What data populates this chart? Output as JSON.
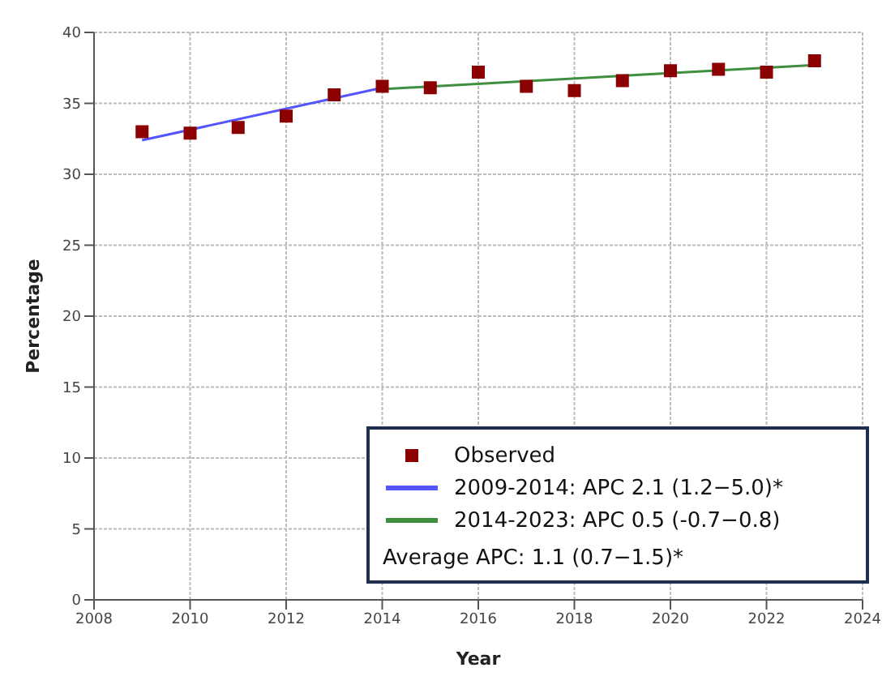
{
  "chart_data": {
    "type": "scatter",
    "xlabel": "Year",
    "ylabel": "Percentage",
    "xlim": [
      2008,
      2024
    ],
    "xticks": [
      2008,
      2010,
      2012,
      2014,
      2016,
      2018,
      2020,
      2022,
      2024
    ],
    "ylim": [
      0,
      40
    ],
    "yticks": [
      0,
      5,
      10,
      15,
      20,
      25,
      30,
      35,
      40
    ],
    "grid": true,
    "legend": "bottom right",
    "series": [
      {
        "name": "Observed",
        "marker": "square",
        "color": "#8b0000",
        "x": [
          2009,
          2010,
          2011,
          2012,
          2013,
          2014,
          2015,
          2016,
          2017,
          2018,
          2019,
          2020,
          2021,
          2022,
          2023
        ],
        "values": [
          33.0,
          32.9,
          33.3,
          34.1,
          35.6,
          36.2,
          36.1,
          37.2,
          36.2,
          35.9,
          36.6,
          37.3,
          37.4,
          37.2,
          38.0
        ]
      },
      {
        "name": "2009-2014: APC 2.1 (1.2−5.0)*",
        "type": "line",
        "marker": "none",
        "color": "#5555ff",
        "x": [
          2009,
          2014
        ],
        "values": [
          32.4,
          36.1
        ]
      },
      {
        "name": "2014-2023: APC 0.5 (-0.7−0.8)",
        "type": "line",
        "marker": "none",
        "color": "#3f8f3f",
        "x": [
          2014,
          2023
        ],
        "values": [
          36.0,
          37.7
        ]
      }
    ],
    "annotations": [
      "Average APC: 1.1 (0.7−1.5)*"
    ]
  }
}
